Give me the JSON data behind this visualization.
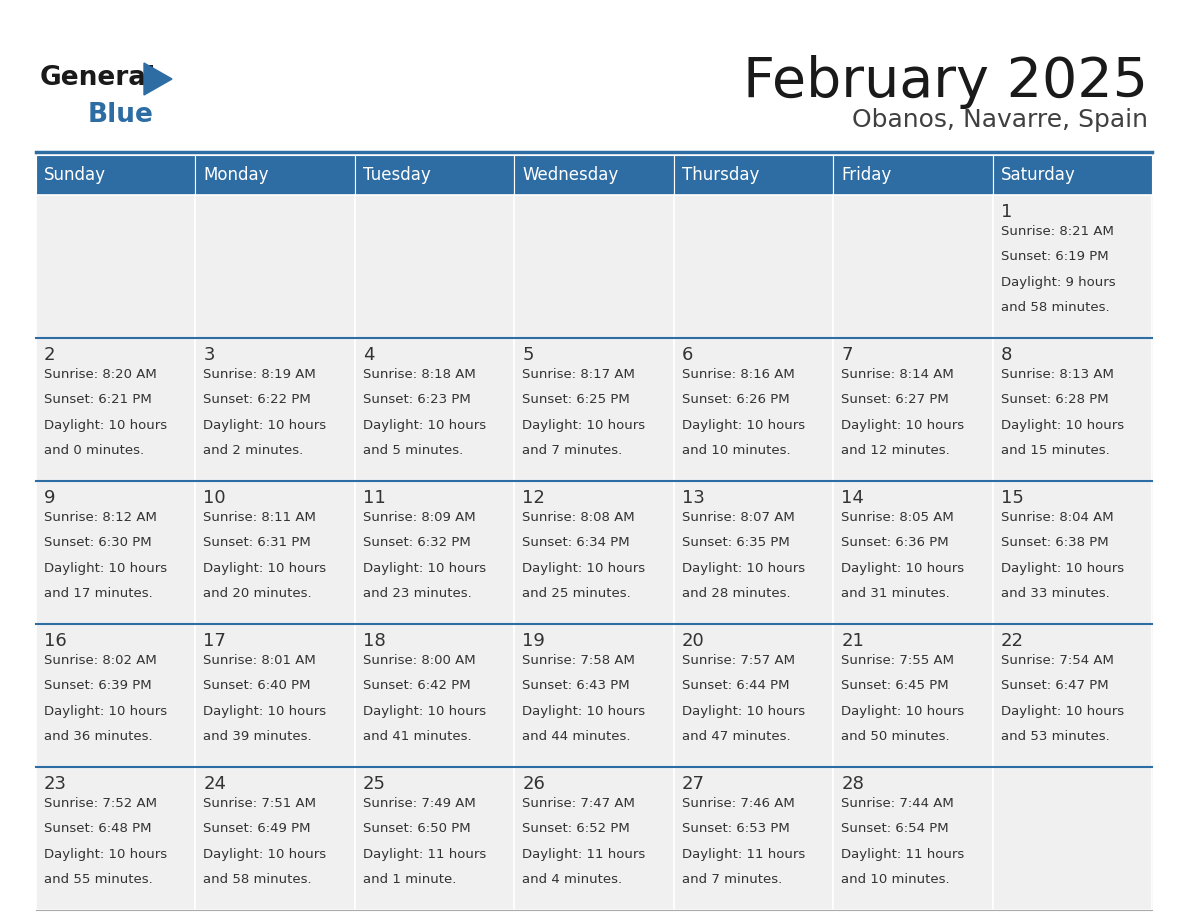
{
  "title": "February 2025",
  "subtitle": "Obanos, Navarre, Spain",
  "days_of_week": [
    "Sunday",
    "Monday",
    "Tuesday",
    "Wednesday",
    "Thursday",
    "Friday",
    "Saturday"
  ],
  "header_bg": "#2E6DA4",
  "header_text": "#FFFFFF",
  "cell_bg": "#F0F0F0",
  "cell_border": "#FFFFFF",
  "row_separator": "#2E6DA4",
  "day_number_color": "#333333",
  "info_text_color": "#333333",
  "title_color": "#1a1a1a",
  "subtitle_color": "#404040",
  "logo_general_color": "#1a1a1a",
  "logo_blue_color": "#2E6DA4",
  "weeks": [
    [
      null,
      null,
      null,
      null,
      null,
      null,
      1
    ],
    [
      2,
      3,
      4,
      5,
      6,
      7,
      8
    ],
    [
      9,
      10,
      11,
      12,
      13,
      14,
      15
    ],
    [
      16,
      17,
      18,
      19,
      20,
      21,
      22
    ],
    [
      23,
      24,
      25,
      26,
      27,
      28,
      null
    ]
  ],
  "cell_data": {
    "1": {
      "sunrise": "8:21 AM",
      "sunset": "6:19 PM",
      "daylight_l1": "Daylight: 9 hours",
      "daylight_l2": "and 58 minutes."
    },
    "2": {
      "sunrise": "8:20 AM",
      "sunset": "6:21 PM",
      "daylight_l1": "Daylight: 10 hours",
      "daylight_l2": "and 0 minutes."
    },
    "3": {
      "sunrise": "8:19 AM",
      "sunset": "6:22 PM",
      "daylight_l1": "Daylight: 10 hours",
      "daylight_l2": "and 2 minutes."
    },
    "4": {
      "sunrise": "8:18 AM",
      "sunset": "6:23 PM",
      "daylight_l1": "Daylight: 10 hours",
      "daylight_l2": "and 5 minutes."
    },
    "5": {
      "sunrise": "8:17 AM",
      "sunset": "6:25 PM",
      "daylight_l1": "Daylight: 10 hours",
      "daylight_l2": "and 7 minutes."
    },
    "6": {
      "sunrise": "8:16 AM",
      "sunset": "6:26 PM",
      "daylight_l1": "Daylight: 10 hours",
      "daylight_l2": "and 10 minutes."
    },
    "7": {
      "sunrise": "8:14 AM",
      "sunset": "6:27 PM",
      "daylight_l1": "Daylight: 10 hours",
      "daylight_l2": "and 12 minutes."
    },
    "8": {
      "sunrise": "8:13 AM",
      "sunset": "6:28 PM",
      "daylight_l1": "Daylight: 10 hours",
      "daylight_l2": "and 15 minutes."
    },
    "9": {
      "sunrise": "8:12 AM",
      "sunset": "6:30 PM",
      "daylight_l1": "Daylight: 10 hours",
      "daylight_l2": "and 17 minutes."
    },
    "10": {
      "sunrise": "8:11 AM",
      "sunset": "6:31 PM",
      "daylight_l1": "Daylight: 10 hours",
      "daylight_l2": "and 20 minutes."
    },
    "11": {
      "sunrise": "8:09 AM",
      "sunset": "6:32 PM",
      "daylight_l1": "Daylight: 10 hours",
      "daylight_l2": "and 23 minutes."
    },
    "12": {
      "sunrise": "8:08 AM",
      "sunset": "6:34 PM",
      "daylight_l1": "Daylight: 10 hours",
      "daylight_l2": "and 25 minutes."
    },
    "13": {
      "sunrise": "8:07 AM",
      "sunset": "6:35 PM",
      "daylight_l1": "Daylight: 10 hours",
      "daylight_l2": "and 28 minutes."
    },
    "14": {
      "sunrise": "8:05 AM",
      "sunset": "6:36 PM",
      "daylight_l1": "Daylight: 10 hours",
      "daylight_l2": "and 31 minutes."
    },
    "15": {
      "sunrise": "8:04 AM",
      "sunset": "6:38 PM",
      "daylight_l1": "Daylight: 10 hours",
      "daylight_l2": "and 33 minutes."
    },
    "16": {
      "sunrise": "8:02 AM",
      "sunset": "6:39 PM",
      "daylight_l1": "Daylight: 10 hours",
      "daylight_l2": "and 36 minutes."
    },
    "17": {
      "sunrise": "8:01 AM",
      "sunset": "6:40 PM",
      "daylight_l1": "Daylight: 10 hours",
      "daylight_l2": "and 39 minutes."
    },
    "18": {
      "sunrise": "8:00 AM",
      "sunset": "6:42 PM",
      "daylight_l1": "Daylight: 10 hours",
      "daylight_l2": "and 41 minutes."
    },
    "19": {
      "sunrise": "7:58 AM",
      "sunset": "6:43 PM",
      "daylight_l1": "Daylight: 10 hours",
      "daylight_l2": "and 44 minutes."
    },
    "20": {
      "sunrise": "7:57 AM",
      "sunset": "6:44 PM",
      "daylight_l1": "Daylight: 10 hours",
      "daylight_l2": "and 47 minutes."
    },
    "21": {
      "sunrise": "7:55 AM",
      "sunset": "6:45 PM",
      "daylight_l1": "Daylight: 10 hours",
      "daylight_l2": "and 50 minutes."
    },
    "22": {
      "sunrise": "7:54 AM",
      "sunset": "6:47 PM",
      "daylight_l1": "Daylight: 10 hours",
      "daylight_l2": "and 53 minutes."
    },
    "23": {
      "sunrise": "7:52 AM",
      "sunset": "6:48 PM",
      "daylight_l1": "Daylight: 10 hours",
      "daylight_l2": "and 55 minutes."
    },
    "24": {
      "sunrise": "7:51 AM",
      "sunset": "6:49 PM",
      "daylight_l1": "Daylight: 10 hours",
      "daylight_l2": "and 58 minutes."
    },
    "25": {
      "sunrise": "7:49 AM",
      "sunset": "6:50 PM",
      "daylight_l1": "Daylight: 11 hours",
      "daylight_l2": "and 1 minute."
    },
    "26": {
      "sunrise": "7:47 AM",
      "sunset": "6:52 PM",
      "daylight_l1": "Daylight: 11 hours",
      "daylight_l2": "and 4 minutes."
    },
    "27": {
      "sunrise": "7:46 AM",
      "sunset": "6:53 PM",
      "daylight_l1": "Daylight: 11 hours",
      "daylight_l2": "and 7 minutes."
    },
    "28": {
      "sunrise": "7:44 AM",
      "sunset": "6:54 PM",
      "daylight_l1": "Daylight: 11 hours",
      "daylight_l2": "and 10 minutes."
    }
  }
}
